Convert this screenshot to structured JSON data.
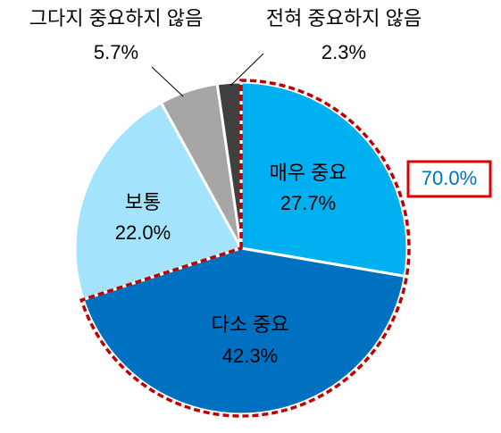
{
  "chart_data": {
    "type": "pie",
    "categories": [
      "매우 중요",
      "다소 중요",
      "보통",
      "그다지 중요하지 않음",
      "전혀 중요하지 않음"
    ],
    "values": [
      27.7,
      42.3,
      22.0,
      5.7,
      2.3
    ],
    "value_labels": [
      "27.7%",
      "42.3%",
      "22.0%",
      "5.7%",
      "2.3%"
    ],
    "colors": [
      "#00b0f0",
      "#0070c0",
      "#a3e3fc",
      "#a6a6a6",
      "#404040"
    ],
    "annotation": "70.0%"
  }
}
